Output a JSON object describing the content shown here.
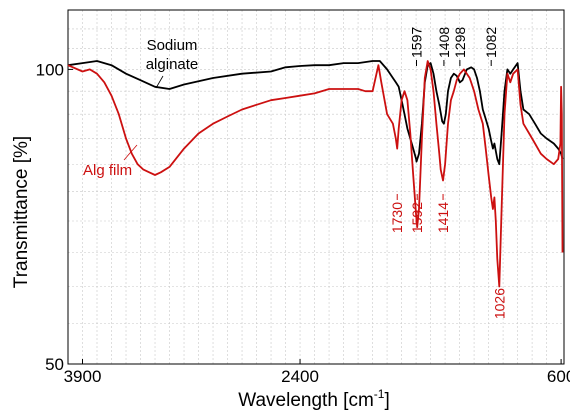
{
  "chart_data": {
    "type": "line",
    "xlabel": "Wavelength [cm",
    "xlabel_sup": "-1",
    "xlabel_end": "]",
    "ylabel": "Transmittance [%]",
    "x_reversed": true,
    "y_scale": "log",
    "xlim": [
      4000,
      580
    ],
    "ylim": [
      50,
      115
    ],
    "x_ticks": [
      3900,
      2400,
      600
    ],
    "x_tick_labels": [
      "3900",
      "2400",
      "600"
    ],
    "y_ticks": [
      50,
      100
    ],
    "y_tick_labels": [
      "50",
      "100"
    ],
    "grid": true,
    "series": [
      {
        "name": "Sodium alginate",
        "label_lines": [
          "Sodium",
          "alginate"
        ],
        "color": "#000000",
        "points": [
          [
            4000,
            101
          ],
          [
            3900,
            101.5
          ],
          [
            3800,
            102
          ],
          [
            3700,
            101
          ],
          [
            3600,
            99
          ],
          [
            3500,
            97.5
          ],
          [
            3400,
            96
          ],
          [
            3300,
            95.5
          ],
          [
            3200,
            96.5
          ],
          [
            3000,
            98
          ],
          [
            2800,
            99
          ],
          [
            2600,
            99.5
          ],
          [
            2500,
            100.5
          ],
          [
            2400,
            100.8
          ],
          [
            2300,
            101
          ],
          [
            2200,
            101
          ],
          [
            2100,
            101.5
          ],
          [
            2000,
            101.5
          ],
          [
            1900,
            102
          ],
          [
            1850,
            102
          ],
          [
            1800,
            100
          ],
          [
            1760,
            98
          ],
          [
            1740,
            97
          ],
          [
            1720,
            96
          ],
          [
            1700,
            93
          ],
          [
            1680,
            90
          ],
          [
            1660,
            87
          ],
          [
            1640,
            85
          ],
          [
            1620,
            83
          ],
          [
            1600,
            81
          ],
          [
            1597,
            80.5
          ],
          [
            1580,
            82
          ],
          [
            1560,
            88
          ],
          [
            1540,
            97
          ],
          [
            1520,
            101
          ],
          [
            1500,
            101.5
          ],
          [
            1480,
            99
          ],
          [
            1460,
            95
          ],
          [
            1440,
            92
          ],
          [
            1420,
            88.5
          ],
          [
            1408,
            88
          ],
          [
            1395,
            90
          ],
          [
            1380,
            95
          ],
          [
            1360,
            98
          ],
          [
            1340,
            99
          ],
          [
            1320,
            98.5
          ],
          [
            1298,
            97
          ],
          [
            1280,
            97.5
          ],
          [
            1250,
            100
          ],
          [
            1220,
            100.5
          ],
          [
            1200,
            100
          ],
          [
            1180,
            98
          ],
          [
            1160,
            95
          ],
          [
            1140,
            91
          ],
          [
            1120,
            89
          ],
          [
            1100,
            87
          ],
          [
            1082,
            84.5
          ],
          [
            1070,
            83
          ],
          [
            1060,
            84
          ],
          [
            1040,
            81
          ],
          [
            1026,
            80
          ],
          [
            1010,
            86
          ],
          [
            990,
            95
          ],
          [
            970,
            100
          ],
          [
            950,
            99
          ],
          [
            930,
            100
          ],
          [
            900,
            101.5
          ],
          [
            880,
            95
          ],
          [
            860,
            91
          ],
          [
            820,
            90
          ],
          [
            780,
            88
          ],
          [
            740,
            86
          ],
          [
            700,
            85
          ],
          [
            650,
            84
          ],
          [
            620,
            83
          ],
          [
            600,
            82
          ],
          [
            590,
            81
          ]
        ]
      },
      {
        "name": "Alg film",
        "color": "#cc1010",
        "points": [
          [
            4000,
            101
          ],
          [
            3900,
            99.5
          ],
          [
            3850,
            100
          ],
          [
            3800,
            99
          ],
          [
            3750,
            97
          ],
          [
            3700,
            94
          ],
          [
            3650,
            90
          ],
          [
            3600,
            85
          ],
          [
            3560,
            82
          ],
          [
            3520,
            80
          ],
          [
            3480,
            79
          ],
          [
            3440,
            78.5
          ],
          [
            3400,
            78
          ],
          [
            3360,
            78.5
          ],
          [
            3300,
            79.5
          ],
          [
            3200,
            83
          ],
          [
            3100,
            86
          ],
          [
            3000,
            88
          ],
          [
            2900,
            89.5
          ],
          [
            2800,
            91
          ],
          [
            2700,
            92
          ],
          [
            2600,
            93
          ],
          [
            2500,
            93.5
          ],
          [
            2400,
            94
          ],
          [
            2300,
            94.5
          ],
          [
            2200,
            95.5
          ],
          [
            2100,
            95.5
          ],
          [
            2000,
            95.5
          ],
          [
            1950,
            95
          ],
          [
            1900,
            95
          ],
          [
            1860,
            101
          ],
          [
            1840,
            97
          ],
          [
            1800,
            90
          ],
          [
            1760,
            88
          ],
          [
            1740,
            85
          ],
          [
            1730,
            83
          ],
          [
            1720,
            87
          ],
          [
            1700,
            93
          ],
          [
            1680,
            95
          ],
          [
            1660,
            93
          ],
          [
            1640,
            86
          ],
          [
            1620,
            78
          ],
          [
            1600,
            71
          ],
          [
            1592,
            69
          ],
          [
            1580,
            72
          ],
          [
            1560,
            85
          ],
          [
            1540,
            98
          ],
          [
            1520,
            102
          ],
          [
            1500,
            100
          ],
          [
            1480,
            95
          ],
          [
            1460,
            88
          ],
          [
            1440,
            82
          ],
          [
            1430,
            79
          ],
          [
            1414,
            77
          ],
          [
            1400,
            80
          ],
          [
            1380,
            88
          ],
          [
            1360,
            93
          ],
          [
            1340,
            95
          ],
          [
            1320,
            97.5
          ],
          [
            1298,
            99
          ],
          [
            1270,
            100
          ],
          [
            1250,
            99
          ],
          [
            1230,
            98
          ],
          [
            1200,
            95
          ],
          [
            1170,
            91
          ],
          [
            1140,
            88
          ],
          [
            1120,
            83
          ],
          [
            1100,
            78
          ],
          [
            1082,
            74
          ],
          [
            1070,
            72
          ],
          [
            1060,
            74
          ],
          [
            1050,
            70
          ],
          [
            1040,
            64
          ],
          [
            1026,
            60
          ],
          [
            1010,
            72
          ],
          [
            990,
            90
          ],
          [
            970,
            99
          ],
          [
            950,
            97
          ],
          [
            930,
            99
          ],
          [
            900,
            100
          ],
          [
            880,
            92
          ],
          [
            860,
            88
          ],
          [
            820,
            86
          ],
          [
            780,
            84
          ],
          [
            740,
            82
          ],
          [
            700,
            81
          ],
          [
            650,
            80
          ],
          [
            620,
            81
          ],
          [
            605,
            84
          ],
          [
            600,
            96
          ],
          [
            595,
            90
          ],
          [
            590,
            65
          ]
        ]
      }
    ],
    "annotations_black": [
      {
        "text": "1597",
        "x": 1597
      },
      {
        "text": "1408",
        "x": 1408
      },
      {
        "text": "1298",
        "x": 1298
      },
      {
        "text": "1082",
        "x": 1082
      }
    ],
    "annotations_red": [
      {
        "text": "1730",
        "x": 1730
      },
      {
        "text": "1592",
        "x": 1592
      },
      {
        "text": "1414",
        "x": 1414
      },
      {
        "text": "1026",
        "x": 1026
      }
    ]
  }
}
